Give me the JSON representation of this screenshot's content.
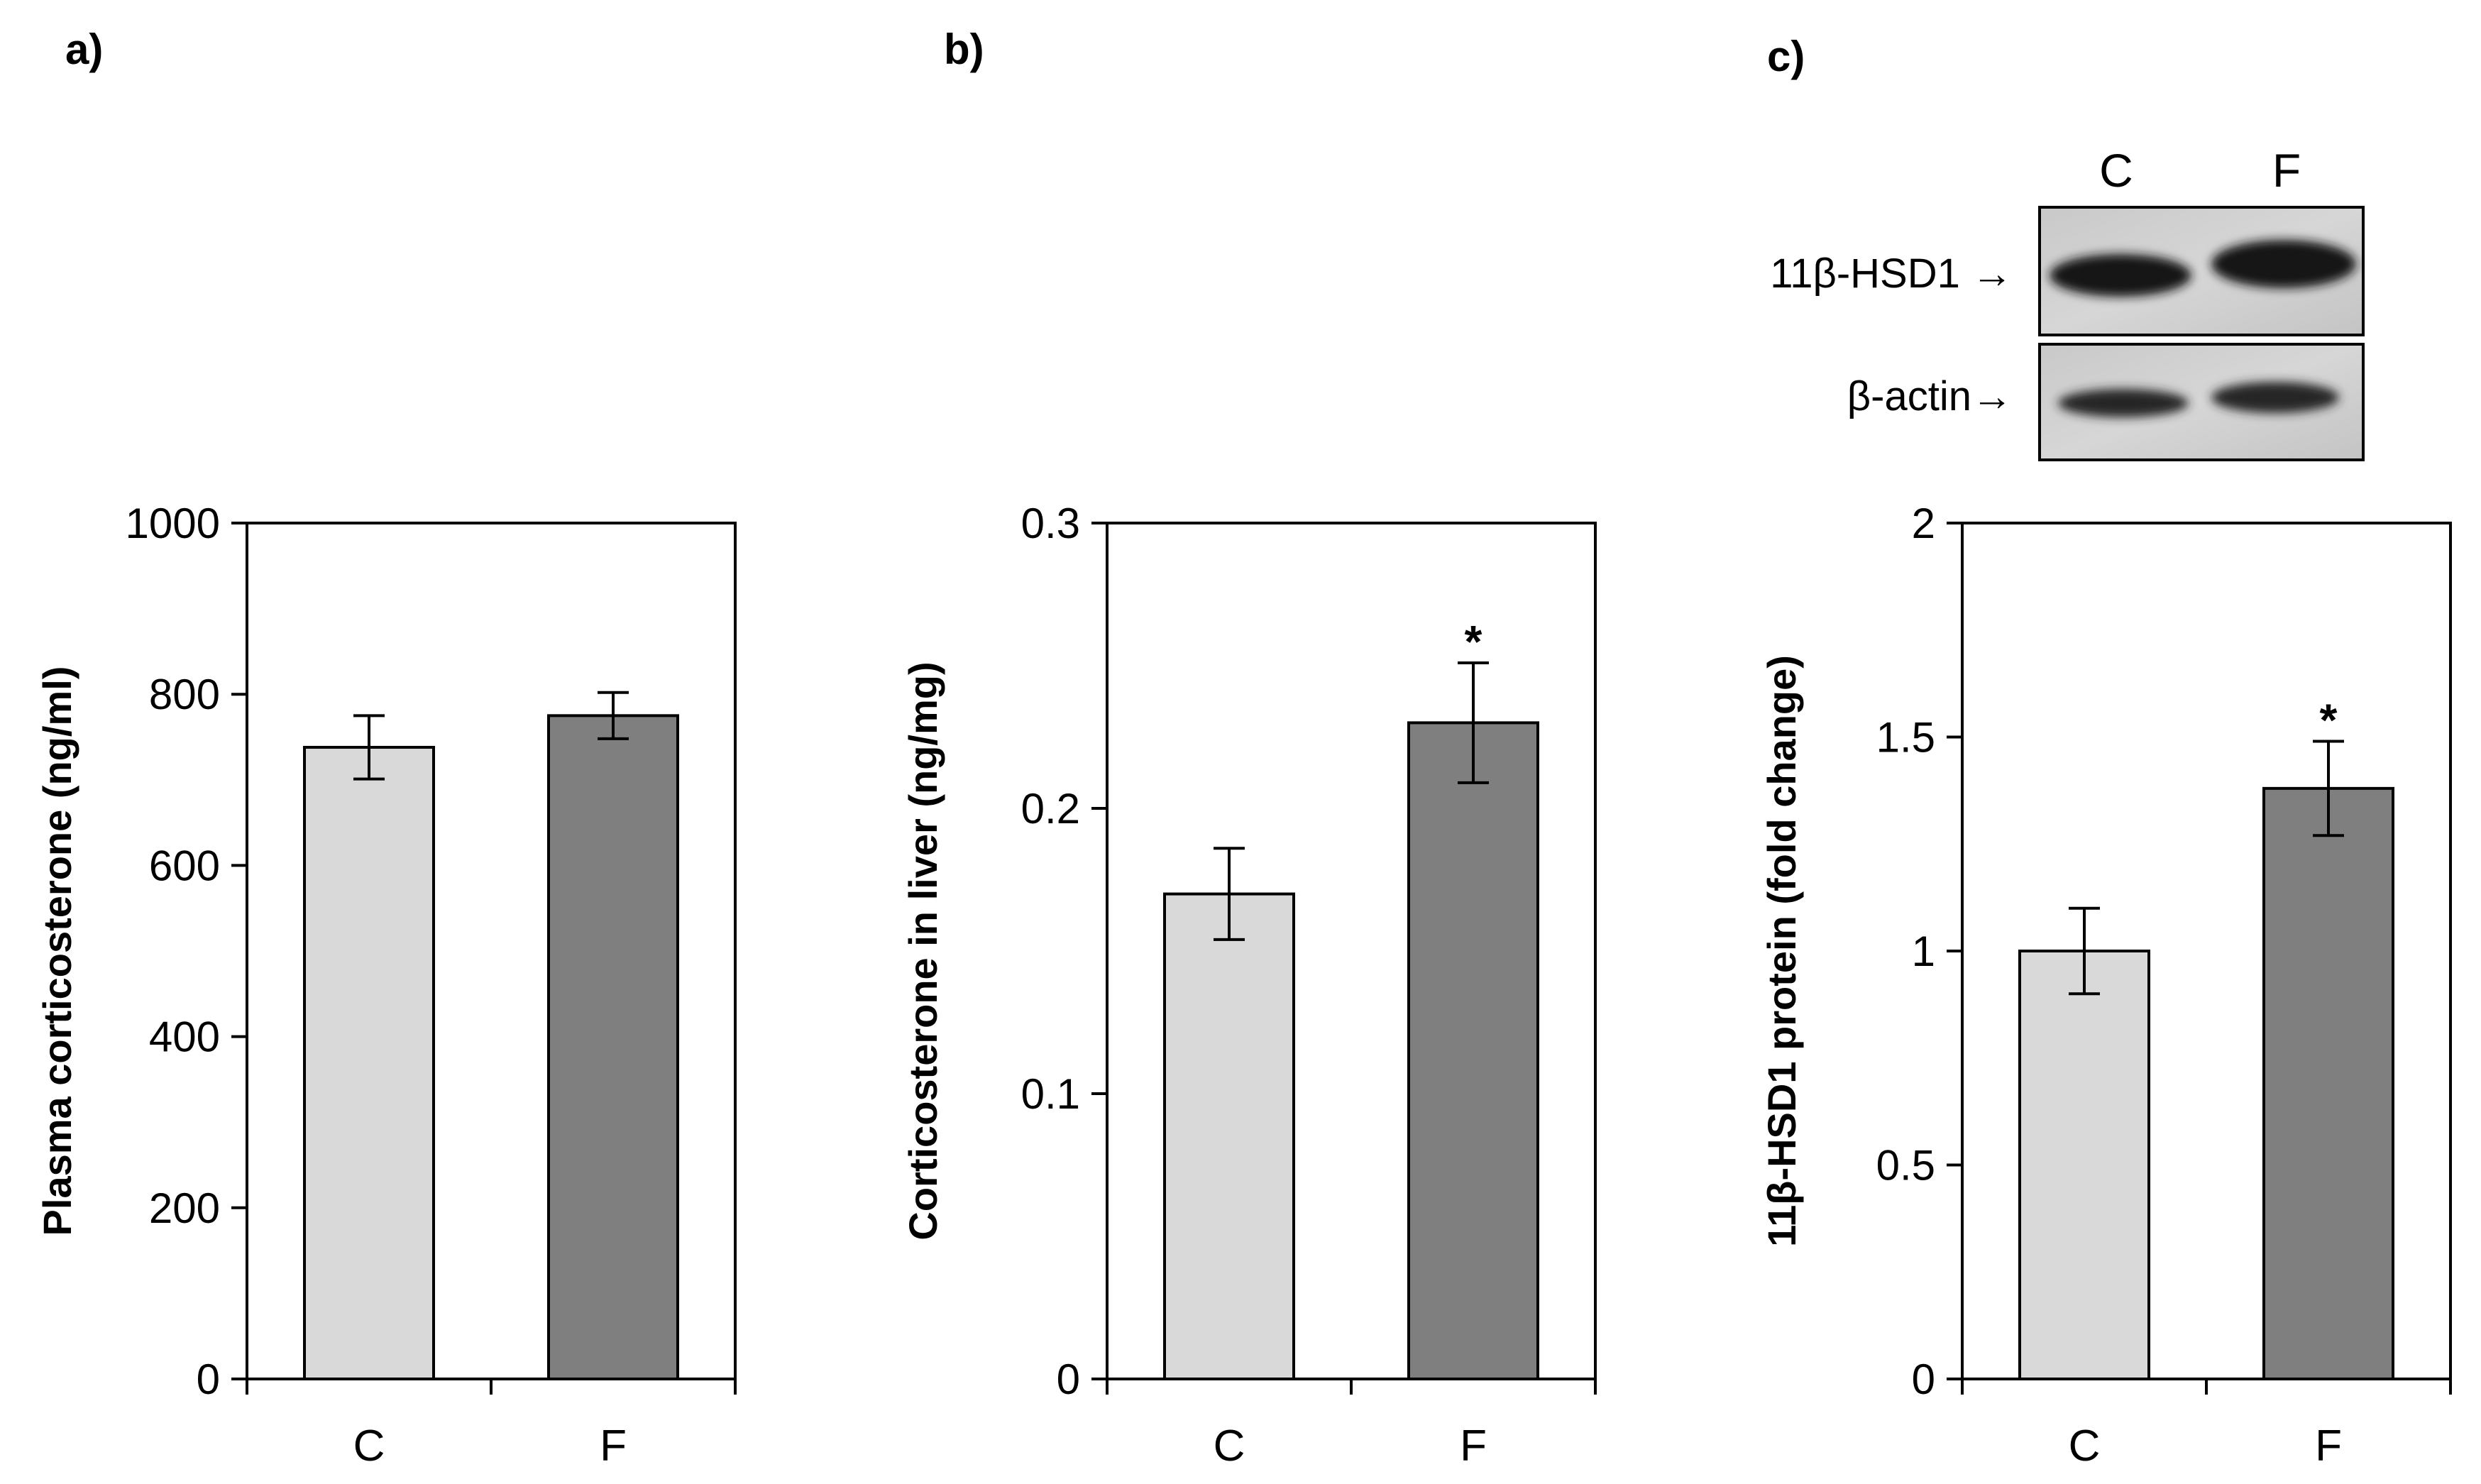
{
  "colors": {
    "control": "#d9d9d9",
    "treated": "#7f7f7f",
    "axis": "#000000"
  },
  "chart_data": [
    {
      "type": "bar",
      "panel_label": "a)",
      "categories": [
        "C",
        "F"
      ],
      "values": [
        738,
        775
      ],
      "errors": [
        37,
        27
      ],
      "significance": [
        "",
        ""
      ],
      "ylabel": "Plasma corticosterone  (ng/ml)",
      "xlabel": "",
      "ylim": [
        0,
        1000
      ],
      "yticks": [
        0,
        200,
        400,
        600,
        800,
        1000
      ],
      "ytick_labels": [
        "0",
        "200",
        "400",
        "600",
        "800",
        "1000"
      ]
    },
    {
      "type": "bar",
      "panel_label": "b)",
      "categories": [
        "C",
        "F"
      ],
      "values": [
        0.17,
        0.23
      ],
      "errors": [
        0.016,
        0.021
      ],
      "significance": [
        "",
        "*"
      ],
      "ylabel": "Corticosterone  in liver (ng/mg)",
      "xlabel": "",
      "ylim": [
        0,
        0.3
      ],
      "yticks": [
        0,
        0.1,
        0.2,
        0.3
      ],
      "ytick_labels": [
        "0",
        "0.1",
        "0.2",
        "0.3"
      ]
    },
    {
      "type": "bar",
      "panel_label": "c)",
      "categories": [
        "C",
        "F"
      ],
      "values": [
        1.0,
        1.38
      ],
      "errors": [
        0.1,
        0.11
      ],
      "significance": [
        "",
        "*"
      ],
      "ylabel": "11β-HSD1  protein (fold change)",
      "xlabel": "",
      "ylim": [
        0,
        2
      ],
      "yticks": [
        0,
        0.5,
        1,
        1.5,
        2
      ],
      "ytick_labels": [
        "0",
        "0.5",
        "1",
        "1.5",
        "2"
      ]
    }
  ],
  "blot": {
    "lanes": [
      "C",
      "F"
    ],
    "rows": [
      {
        "label": "11β-HSD1  →"
      },
      {
        "label": "β-actin→"
      }
    ]
  }
}
